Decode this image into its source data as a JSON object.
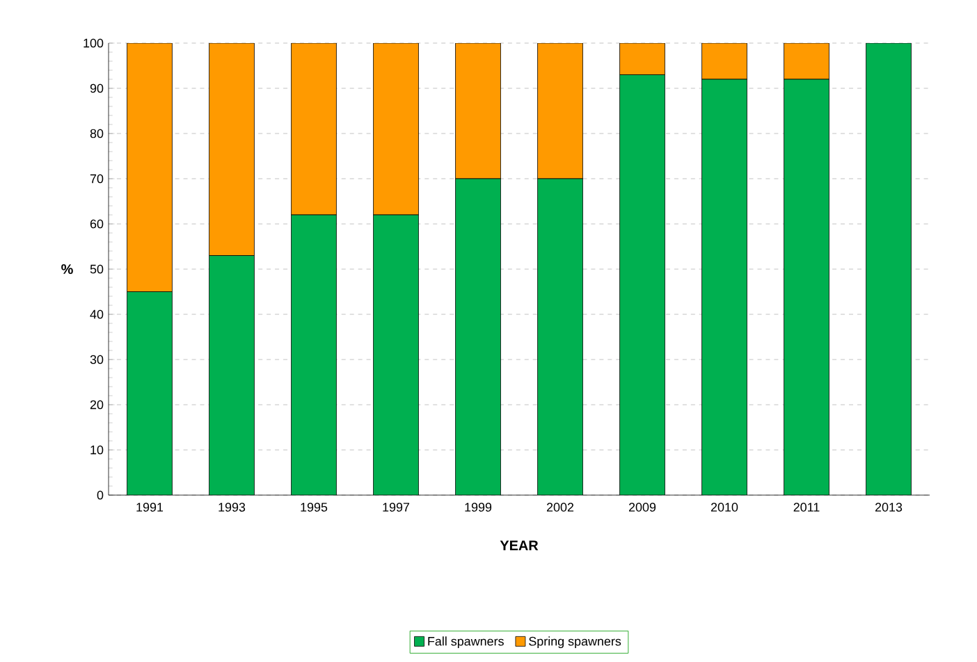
{
  "chart_data": {
    "type": "bar",
    "stacked": true,
    "xlabel": "YEAR",
    "ylabel": "%",
    "categories": [
      "1991",
      "1993",
      "1995",
      "1997",
      "1999",
      "2002",
      "2009",
      "2010",
      "2011",
      "2013"
    ],
    "series": [
      {
        "name": "Fall spawners",
        "color": "#00b050",
        "values": [
          45,
          53,
          62,
          62,
          70,
          70,
          93,
          92,
          92,
          100
        ]
      },
      {
        "name": "Spring spawners",
        "color": "#ff9a00",
        "values": [
          55,
          47,
          38,
          38,
          30,
          30,
          7,
          8,
          8,
          0
        ]
      }
    ],
    "ylim": [
      0,
      100
    ],
    "yticks": [
      0,
      10,
      20,
      30,
      40,
      50,
      60,
      70,
      80,
      90,
      100
    ],
    "grid": "y",
    "legend": "bottom"
  }
}
